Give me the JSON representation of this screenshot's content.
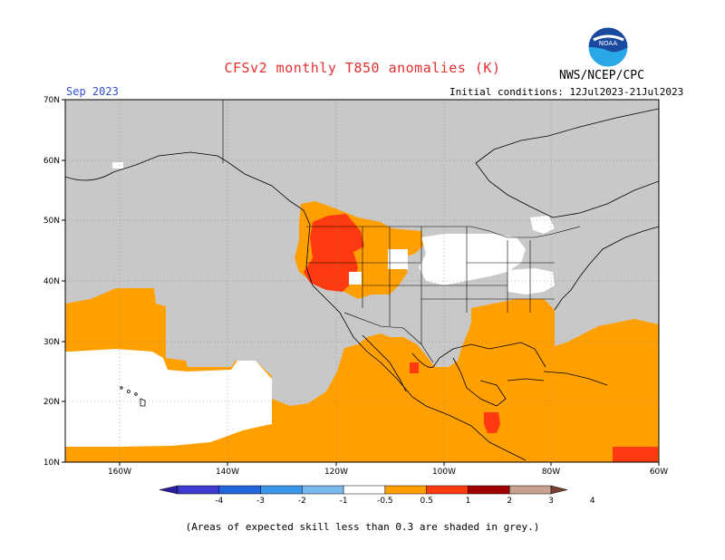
{
  "header": {
    "title": "CFSv2 monthly T850 anomalies (K)",
    "agency": "NWS/NCEP/CPC",
    "month": "Sep 2023",
    "initial_conditions": "Initial conditions: 12Jul2023-21Jul2023"
  },
  "axes": {
    "lat_labels": [
      "70N",
      "60N",
      "50N",
      "40N",
      "30N",
      "20N",
      "10N"
    ],
    "lon_labels": [
      "160W",
      "140W",
      "120W",
      "100W",
      "80W",
      "60W"
    ]
  },
  "legend": {
    "labels": [
      "-4",
      "-3",
      "-2",
      "-1",
      "-0.5",
      "0.5",
      "1",
      "2",
      "3",
      "4"
    ],
    "colors": [
      "#2a1fa0",
      "#3b3bd0",
      "#2266dd",
      "#3a96ea",
      "#7ab8f0",
      "#ffffff",
      "#ffa000",
      "#ff3a10",
      "#a00000",
      "#c8a090",
      "#7a4030"
    ]
  },
  "colors": {
    "skill_grey": "#c8c8c8",
    "warm_orange": "#ffa000",
    "warm_red": "#ff3a10",
    "neutral_white": "#ffffff"
  },
  "footnote": "(Areas of expected skill less than 0.3 are shaded in grey.)"
}
